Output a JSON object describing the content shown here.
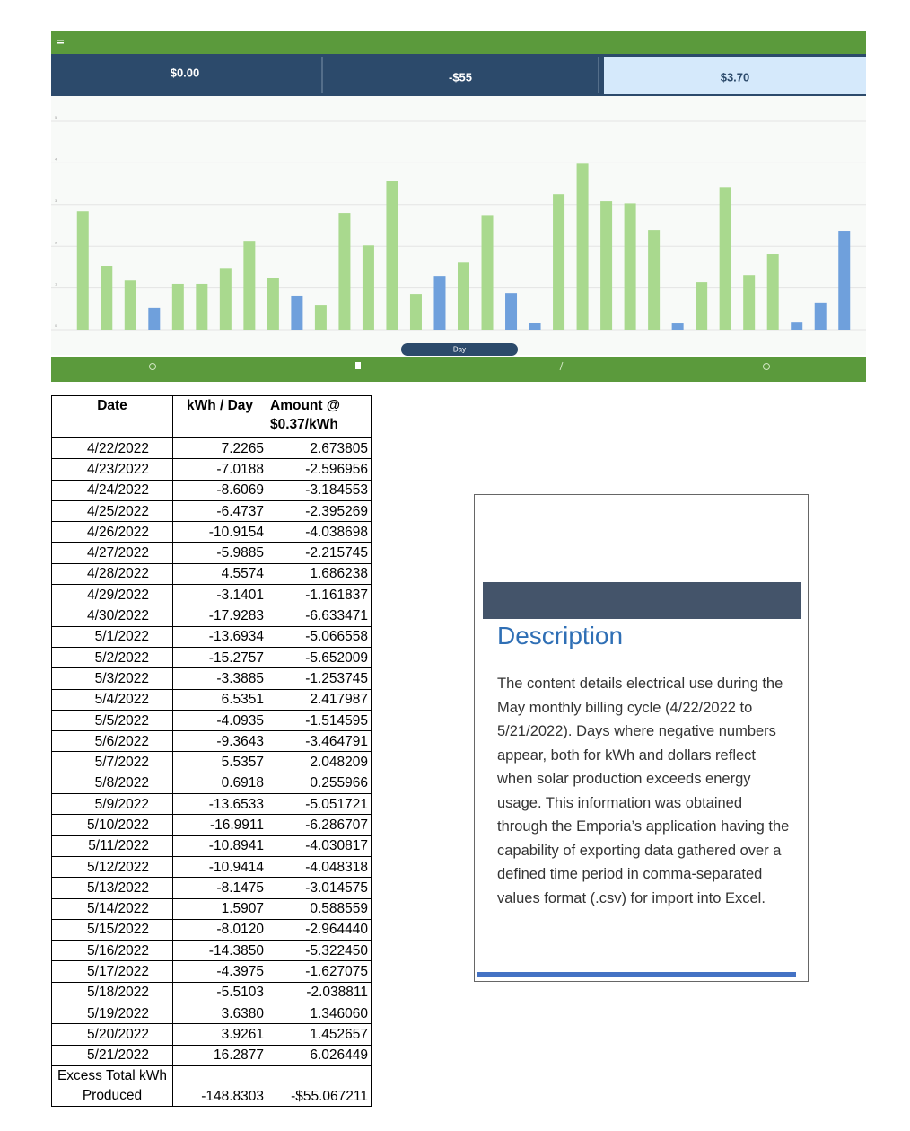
{
  "app": {
    "stats": [
      "$0.00",
      "-$55",
      "$3.70"
    ],
    "active_tab": "Day"
  },
  "chart_data": {
    "type": "bar",
    "values": [
      2.84,
      1.53,
      1.18,
      0.52,
      1.1,
      1.1,
      1.48,
      2.13,
      1.25,
      0.82,
      0.58,
      2.8,
      2.02,
      3.57,
      0.86,
      1.29,
      1.61,
      2.75,
      0.88,
      0.17,
      3.25,
      3.98,
      3.08,
      3.03,
      2.39,
      0.15,
      1.14,
      3.42,
      1.31,
      1.81,
      0.19,
      0.65,
      2.37
    ],
    "colors": [
      "#a9d98e",
      "#a9d98e",
      "#a9d98e",
      "#6fa0dc",
      "#a9d98e",
      "#a9d98e",
      "#a9d98e",
      "#a9d98e",
      "#a9d98e",
      "#6fa0dc",
      "#a9d98e",
      "#a9d98e",
      "#a9d98e",
      "#a9d98e",
      "#a9d98e",
      "#6fa0dc",
      "#a9d98e",
      "#a9d98e",
      "#6fa0dc",
      "#6fa0dc",
      "#a9d98e",
      "#a9d98e",
      "#a9d98e",
      "#a9d98e",
      "#a9d98e",
      "#6fa0dc",
      "#a9d98e",
      "#a9d98e",
      "#a9d98e",
      "#a9d98e",
      "#6fa0dc",
      "#6fa0dc",
      "#6fa0dc"
    ],
    "ylim": [
      0,
      5
    ],
    "yticks": [
      0,
      1,
      2,
      3,
      4,
      5
    ],
    "grid": true
  },
  "table": {
    "header": [
      "Date",
      "kWh / Day",
      "Amount @ $0.37/kWh"
    ],
    "rows": [
      [
        "4/22/2022",
        "7.2265",
        "2.673805"
      ],
      [
        "4/23/2022",
        "-7.0188",
        "-2.596956"
      ],
      [
        "4/24/2022",
        "-8.6069",
        "-3.184553"
      ],
      [
        "4/25/2022",
        "-6.4737",
        "-2.395269"
      ],
      [
        "4/26/2022",
        "-10.9154",
        "-4.038698"
      ],
      [
        "4/27/2022",
        "-5.9885",
        "-2.215745"
      ],
      [
        "4/28/2022",
        "4.5574",
        "1.686238"
      ],
      [
        "4/29/2022",
        "-3.1401",
        "-1.161837"
      ],
      [
        "4/30/2022",
        "-17.9283",
        "-6.633471"
      ],
      [
        "5/1/2022",
        "-13.6934",
        "-5.066558"
      ],
      [
        "5/2/2022",
        "-15.2757",
        "-5.652009"
      ],
      [
        "5/3/2022",
        "-3.3885",
        "-1.253745"
      ],
      [
        "5/4/2022",
        "6.5351",
        "2.417987"
      ],
      [
        "5/5/2022",
        "-4.0935",
        "-1.514595"
      ],
      [
        "5/6/2022",
        "-9.3643",
        "-3.464791"
      ],
      [
        "5/7/2022",
        "5.5357",
        "2.048209"
      ],
      [
        "5/8/2022",
        "0.6918",
        "0.255966"
      ],
      [
        "5/9/2022",
        "-13.6533",
        "-5.051721"
      ],
      [
        "5/10/2022",
        "-16.9911",
        "-6.286707"
      ],
      [
        "5/11/2022",
        "-10.8941",
        "-4.030817"
      ],
      [
        "5/12/2022",
        "-10.9414",
        "-4.048318"
      ],
      [
        "5/13/2022",
        "-8.1475",
        "-3.014575"
      ],
      [
        "5/14/2022",
        "1.5907",
        "0.588559"
      ],
      [
        "5/15/2022",
        "-8.0120",
        "-2.964440"
      ],
      [
        "5/16/2022",
        "-14.3850",
        "-5.322450"
      ],
      [
        "5/17/2022",
        "-4.3975",
        "-1.627075"
      ],
      [
        "5/18/2022",
        "-5.5103",
        "-2.038811"
      ],
      [
        "5/19/2022",
        "3.6380",
        "1.346060"
      ],
      [
        "5/20/2022",
        "3.9261",
        "1.452657"
      ],
      [
        "5/21/2022",
        "16.2877",
        "6.026449"
      ]
    ],
    "footer": [
      "Excess Total kWh Produced",
      "-148.8303",
      "-$55.067211"
    ]
  },
  "description": {
    "title": "Description",
    "text": "The content details electrical use during the May monthly billing cycle (4/22/2022 to 5/21/2022). Days where negative numbers appear, both for kWh and dollars reflect when solar production exceeds energy usage. This information was obtained through the Emporia’s application having the capability of exporting data gathered over a defined time period in comma-separated values format (.csv) for import into Excel."
  }
}
